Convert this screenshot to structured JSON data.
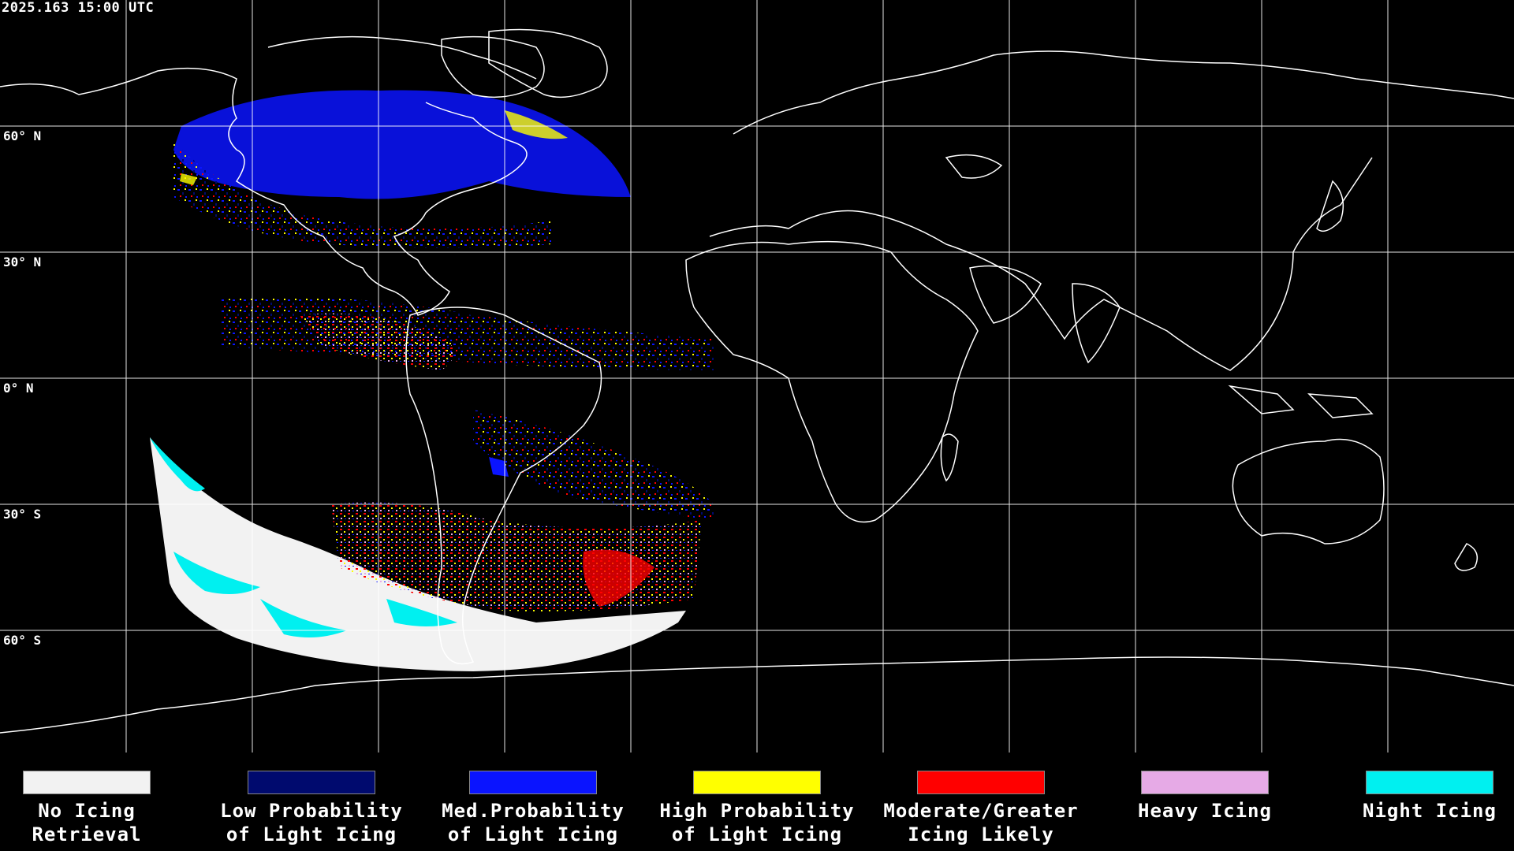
{
  "header": {
    "timestamp": "2025.163 15:00 UTC"
  },
  "latitude_labels": [
    "60° N",
    "30° N",
    "0° N",
    "30° S",
    "60° S"
  ],
  "legend": {
    "items": [
      {
        "label": "No Icing\nRetrieval",
        "color": "#f2f2f2"
      },
      {
        "label": "Low Probability\nof Light Icing",
        "color": "#000a6e"
      },
      {
        "label": "Med.Probability\nof Light Icing",
        "color": "#0a14ff"
      },
      {
        "label": "High Probability\nof Light Icing",
        "color": "#ffff00"
      },
      {
        "label": "Moderate/Greater\nIcing Likely",
        "color": "#ff0000"
      },
      {
        "label": "Heavy Icing",
        "color": "#e6aae6"
      },
      {
        "label": "Night Icing",
        "color": "#00f0f0"
      }
    ]
  },
  "map": {
    "projection": "equirectangular",
    "grid_color": "#ffffff",
    "coastline_color": "#ffffff"
  }
}
